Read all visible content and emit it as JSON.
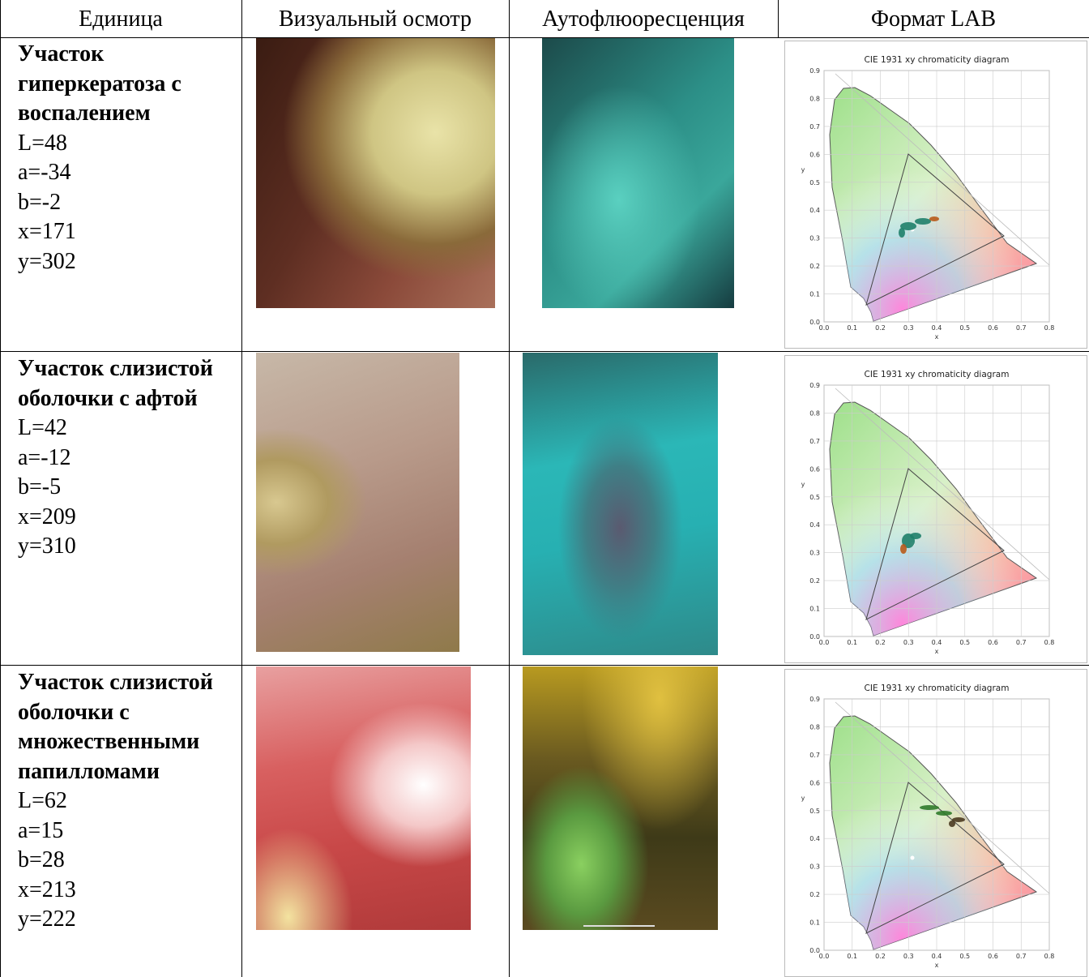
{
  "header": [
    "Единица",
    "Визуальный осмотр",
    "Аутофлюоресценция",
    "Формат LAB"
  ],
  "rows": [
    {
      "title": "Участок гиперкератоза с воспалением",
      "values": [
        "L=48",
        "a=-34",
        "b=-2",
        "x=171",
        "y=302"
      ]
    },
    {
      "title": "Участок слизистой оболочки с афтой",
      "values": [
        "L=42",
        "a=-12",
        "b=-5",
        "x=209",
        "y=310"
      ]
    },
    {
      "title": "Участок слизистой оболочки с множественными папилломами",
      "values": [
        "L=62",
        "a=15",
        "b=28",
        "x=213",
        "y=222"
      ]
    }
  ],
  "diagram": {
    "title": "CIE 1931 xy chromaticity diagram",
    "xlabel": "x",
    "ylabel": "y",
    "xlim": [
      0,
      0.8
    ],
    "ylim": [
      0,
      0.9
    ],
    "xticks": [
      {
        "value": 0,
        "label": "0.0"
      },
      0.1,
      0.2,
      0.3,
      0.4,
      0.5,
      0.6,
      0.7,
      0.8
    ],
    "yticks": [
      {
        "value": 0,
        "label": "0.0"
      },
      0.1,
      0.2,
      0.3,
      0.4,
      0.5,
      0.6,
      0.7,
      0.8,
      0.9
    ]
  }
}
